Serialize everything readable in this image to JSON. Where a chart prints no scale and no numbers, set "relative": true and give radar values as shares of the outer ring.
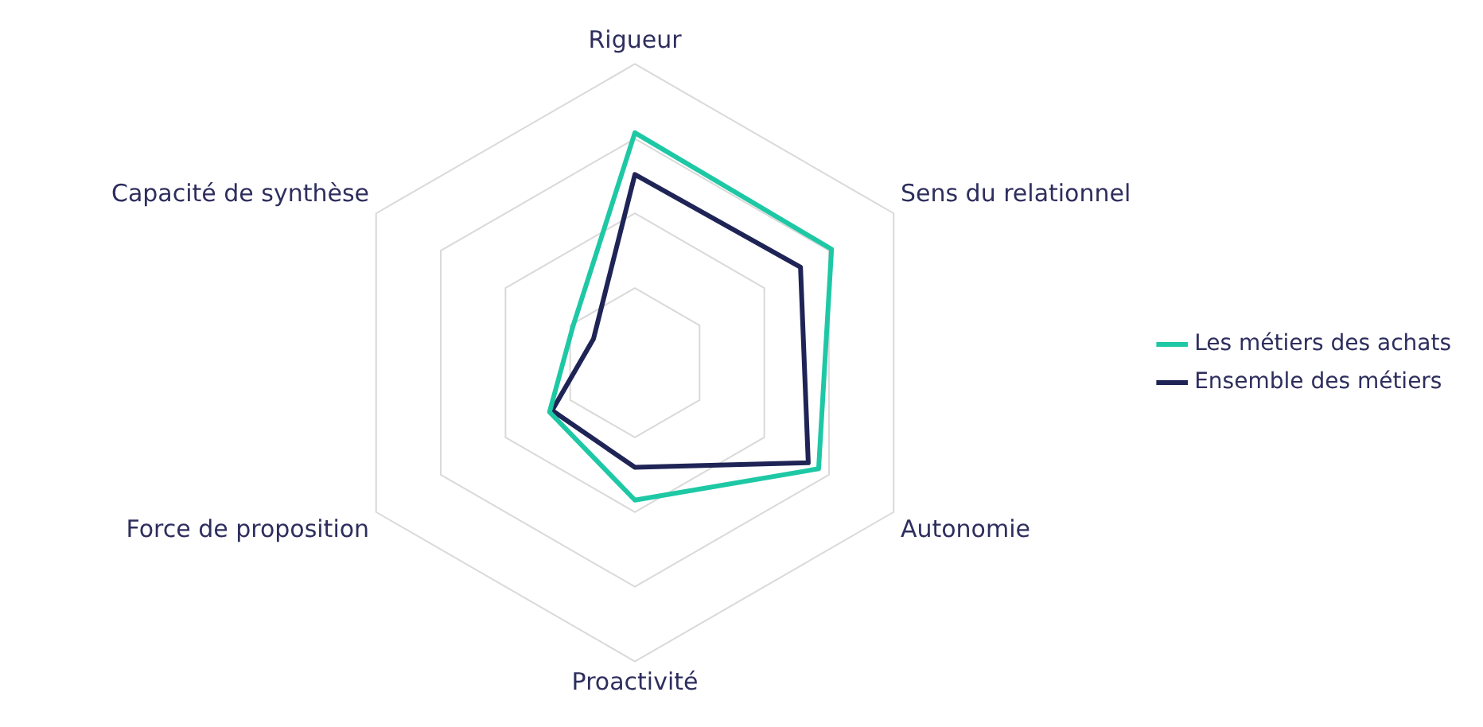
{
  "chart_data": {
    "type": "radar",
    "relative": true,
    "categories": [
      "Rigueur",
      "Sens du relationnel",
      "Autonomie",
      "Proactivité",
      "Force de proposition",
      "Capacité de synthèse"
    ],
    "series": [
      {
        "name": "Les métiers des achats",
        "color": "#1ec8a5",
        "values": [
          0.77,
          0.76,
          0.71,
          0.46,
          0.33,
          0.24
        ]
      },
      {
        "name": "Ensemble des métiers",
        "color": "#1f2456",
        "values": [
          0.63,
          0.64,
          0.67,
          0.35,
          0.32,
          0.16
        ]
      }
    ],
    "grid": true,
    "legend": "right",
    "marker": "none",
    "line_style": "solid"
  }
}
